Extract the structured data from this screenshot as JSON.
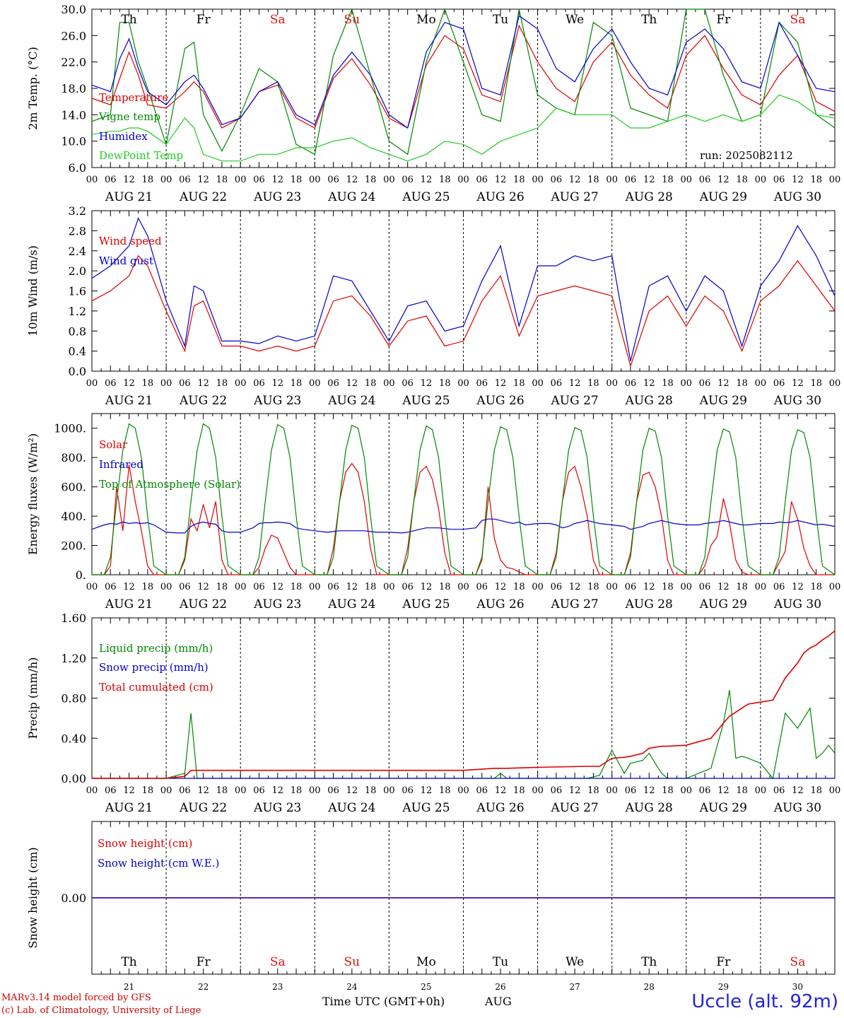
{
  "figure": {
    "footer_model": "MARv3.14 model forced by GFS",
    "footer_lab": "(c) Lab. of Climatology, University of Liege",
    "x_axis_title": "Time UTC (GMT+0h)",
    "month_label": "AUG",
    "station": "Uccle (alt. 92m)",
    "run": "run: 2025082112",
    "hour_ticks": [
      "00",
      "06",
      "12",
      "18"
    ],
    "day_dates": [
      "AUG 21",
      "AUG 22",
      "AUG 23",
      "AUG 24",
      "AUG 25",
      "AUG 26",
      "AUG 27",
      "AUG 28",
      "AUG 29",
      "AUG 30"
    ],
    "day_numbers": [
      "21",
      "22",
      "23",
      "24",
      "25",
      "26",
      "27",
      "28",
      "29",
      "30"
    ],
    "weekdays": [
      "Th",
      "Fr",
      "Sa",
      "Su",
      "Mo",
      "Tu",
      "We",
      "Th",
      "Fr",
      "Sa"
    ],
    "weekend_color": "#e01010",
    "weekday_color": "#000000"
  },
  "chart_data": [
    {
      "type": "line",
      "ylabel": "2m Temp. (°C)",
      "ylim": [
        6,
        30
      ],
      "yticks": [
        "6.0",
        "10.0",
        "14.0",
        "18.0",
        "22.0",
        "26.0",
        "30.0"
      ],
      "ytick_values": [
        6,
        10,
        14,
        18,
        22,
        26,
        30
      ],
      "x_unit": "hours since AUG 21 00 UTC",
      "x": [
        0,
        6,
        9,
        12,
        15,
        18,
        24,
        30,
        33,
        36,
        42,
        48,
        54,
        60,
        66,
        72,
        78,
        84,
        90,
        96,
        102,
        108,
        114,
        120,
        126,
        132,
        138,
        144,
        150,
        156,
        162,
        168,
        174,
        180,
        186,
        192,
        198,
        204,
        210,
        216,
        222,
        228,
        234,
        240
      ],
      "series": [
        {
          "name": "Temperature",
          "color": "#dd0000",
          "values": [
            16.5,
            15.5,
            19.5,
            23.5,
            20,
            15.5,
            15,
            17.5,
            19,
            17.5,
            12,
            13.5,
            17.5,
            18.5,
            13.5,
            12,
            19.5,
            22.5,
            18.5,
            13.5,
            12,
            21.5,
            26,
            24,
            17,
            16,
            27.5,
            22,
            18,
            16,
            22,
            25,
            20,
            17,
            15,
            23,
            26,
            21,
            17,
            15.5,
            20,
            23,
            16,
            14.5
          ]
        },
        {
          "name": "Vigne temp",
          "color": "#008800",
          "values": [
            13,
            14,
            28,
            28,
            22,
            18,
            9.5,
            24,
            25,
            14,
            8.5,
            14,
            21,
            19,
            9.5,
            8,
            23,
            30,
            20,
            10,
            8,
            22,
            30,
            22,
            14,
            13,
            30,
            17,
            15,
            14,
            28,
            26,
            15,
            14,
            13,
            30,
            30,
            20,
            13,
            14,
            28,
            25,
            14,
            12
          ]
        },
        {
          "name": "Humidex",
          "color": "#0000cc",
          "values": [
            18.5,
            17.5,
            22.5,
            25.5,
            21,
            17.5,
            15.5,
            19,
            20,
            18,
            12.5,
            13.5,
            17.5,
            19,
            14,
            12.5,
            20,
            23.5,
            20,
            14,
            12,
            23.5,
            28,
            27,
            18,
            17,
            29,
            27,
            21,
            19,
            24,
            27,
            22,
            18,
            17,
            25,
            27,
            24,
            19,
            18,
            28,
            23,
            18,
            17.5
          ]
        },
        {
          "name": "DewPoint Temp",
          "color": "#22cc22",
          "values": [
            11,
            11.5,
            11.5,
            12,
            12,
            11.5,
            9.5,
            13.5,
            12,
            8,
            7,
            7,
            8,
            8,
            9,
            9,
            10,
            10.5,
            9,
            8,
            7,
            8,
            10,
            9.5,
            8,
            10,
            11,
            12,
            15,
            14,
            14,
            14,
            12,
            12,
            13,
            14,
            13,
            14,
            13,
            14,
            17,
            16,
            14,
            13.5
          ]
        }
      ]
    },
    {
      "type": "line",
      "ylabel": "10m Wind (m/s)",
      "ylim": [
        0,
        3.2
      ],
      "yticks": [
        "0.0",
        "0.4",
        "0.8",
        "1.2",
        "1.6",
        "2.0",
        "2.4",
        "2.8",
        "3.2"
      ],
      "ytick_values": [
        0,
        0.4,
        0.8,
        1.2,
        1.6,
        2.0,
        2.4,
        2.8,
        3.2
      ],
      "x": [
        0,
        6,
        12,
        15,
        18,
        24,
        30,
        33,
        36,
        42,
        48,
        54,
        60,
        66,
        72,
        78,
        84,
        90,
        96,
        102,
        108,
        114,
        120,
        126,
        132,
        138,
        144,
        150,
        156,
        162,
        168,
        174,
        180,
        186,
        192,
        198,
        204,
        210,
        216,
        222,
        228,
        234,
        240
      ],
      "series": [
        {
          "name": "Wind speed",
          "color": "#dd0000",
          "values": [
            1.4,
            1.6,
            1.9,
            2.3,
            2.1,
            1.2,
            0.4,
            1.3,
            1.4,
            0.5,
            0.5,
            0.4,
            0.5,
            0.4,
            0.5,
            1.4,
            1.5,
            1.1,
            0.5,
            1.0,
            1.1,
            0.5,
            0.6,
            1.4,
            1.9,
            0.7,
            1.5,
            1.6,
            1.7,
            1.6,
            1.5,
            0.1,
            1.2,
            1.5,
            0.9,
            1.5,
            1.2,
            0.4,
            1.4,
            1.7,
            2.2,
            1.7,
            1.2
          ]
        },
        {
          "name": "Wind gust",
          "color": "#0000cc",
          "values": [
            1.85,
            2.1,
            2.5,
            3.05,
            2.7,
            1.4,
            0.5,
            1.7,
            1.6,
            0.6,
            0.6,
            0.55,
            0.7,
            0.6,
            0.7,
            1.9,
            1.8,
            1.2,
            0.6,
            1.3,
            1.4,
            0.8,
            0.9,
            1.8,
            2.5,
            0.9,
            2.1,
            2.1,
            2.3,
            2.2,
            2.3,
            0.2,
            1.7,
            1.9,
            1.2,
            1.9,
            1.6,
            0.5,
            1.7,
            2.2,
            2.9,
            2.3,
            1.5
          ]
        }
      ]
    },
    {
      "type": "line",
      "ylabel": "Energy fluxes (W/m²)",
      "ylim": [
        0,
        1100
      ],
      "yticks": [
        "0.",
        "200.",
        "400.",
        "600.",
        "800.",
        "1000."
      ],
      "ytick_values": [
        0,
        200,
        400,
        600,
        800,
        1000
      ],
      "x": [
        0,
        4,
        6,
        8,
        10,
        12,
        14,
        16,
        18,
        20,
        24,
        28,
        30,
        32,
        34,
        36,
        38,
        40,
        42,
        44,
        48,
        52,
        54,
        56,
        58,
        60,
        62,
        64,
        66,
        68,
        72,
        76,
        78,
        80,
        82,
        84,
        86,
        88,
        90,
        92,
        96,
        100,
        102,
        104,
        106,
        108,
        110,
        112,
        114,
        116,
        120,
        124,
        126,
        128,
        130,
        132,
        134,
        136,
        138,
        140,
        144,
        148,
        150,
        152,
        154,
        156,
        158,
        160,
        162,
        164,
        168,
        172,
        174,
        176,
        178,
        180,
        182,
        184,
        186,
        188,
        192,
        196,
        198,
        200,
        202,
        204,
        206,
        208,
        210,
        212,
        216,
        220,
        222,
        224,
        226,
        228,
        230,
        232,
        234,
        236,
        240
      ],
      "series": [
        {
          "name": "Solar",
          "color": "#dd0000",
          "values": [
            0,
            0,
            60,
            600,
            300,
            750,
            500,
            300,
            60,
            0,
            0,
            0,
            100,
            380,
            300,
            480,
            320,
            500,
            100,
            0,
            0,
            0,
            50,
            180,
            270,
            250,
            150,
            50,
            0,
            0,
            0,
            0,
            180,
            500,
            700,
            760,
            700,
            500,
            180,
            0,
            0,
            0,
            180,
            500,
            700,
            740,
            650,
            450,
            150,
            0,
            0,
            0,
            100,
            600,
            250,
            100,
            50,
            40,
            20,
            0,
            0,
            0,
            150,
            500,
            700,
            740,
            600,
            400,
            100,
            0,
            0,
            0,
            150,
            500,
            680,
            700,
            600,
            400,
            100,
            0,
            0,
            0,
            60,
            200,
            260,
            520,
            350,
            100,
            20,
            0,
            0,
            0,
            80,
            160,
            500,
            380,
            180,
            60,
            0,
            0,
            0
          ]
        },
        {
          "name": "Infrared",
          "color": "#0000cc",
          "values": [
            310,
            340,
            350,
            345,
            360,
            350,
            355,
            350,
            355,
            340,
            290,
            285,
            285,
            330,
            350,
            360,
            350,
            345,
            300,
            290,
            290,
            320,
            350,
            355,
            355,
            360,
            355,
            350,
            320,
            310,
            300,
            290,
            295,
            300,
            300,
            300,
            300,
            300,
            295,
            290,
            290,
            285,
            290,
            300,
            310,
            320,
            320,
            320,
            315,
            310,
            310,
            320,
            370,
            380,
            380,
            370,
            360,
            350,
            360,
            340,
            350,
            350,
            340,
            320,
            330,
            350,
            360,
            370,
            360,
            350,
            340,
            330,
            310,
            320,
            330,
            350,
            360,
            370,
            360,
            350,
            340,
            340,
            350,
            355,
            360,
            370,
            360,
            350,
            340,
            340,
            350,
            350,
            360,
            355,
            360,
            370,
            360,
            350,
            340,
            345,
            330
          ]
        },
        {
          "name": "Top of Atmosphere (Solar)",
          "color": "#008800",
          "values": [
            0,
            0,
            120,
            500,
            850,
            1030,
            1000,
            800,
            400,
            60,
            0,
            0,
            120,
            500,
            850,
            1030,
            1000,
            800,
            400,
            60,
            0,
            0,
            120,
            500,
            850,
            1025,
            1000,
            800,
            400,
            60,
            0,
            0,
            120,
            500,
            850,
            1020,
            1000,
            800,
            400,
            60,
            0,
            0,
            120,
            500,
            850,
            1015,
            990,
            800,
            400,
            60,
            0,
            0,
            120,
            500,
            850,
            1010,
            990,
            800,
            400,
            60,
            0,
            0,
            120,
            500,
            850,
            1005,
            985,
            800,
            400,
            60,
            0,
            0,
            120,
            500,
            850,
            1000,
            980,
            800,
            400,
            60,
            0,
            0,
            120,
            500,
            850,
            995,
            975,
            800,
            400,
            60,
            0,
            0,
            120,
            500,
            850,
            990,
            970,
            800,
            400,
            60,
            0
          ]
        }
      ]
    },
    {
      "type": "line",
      "ylabel": "Precip (mm/h)",
      "ylim": [
        0,
        1.6
      ],
      "yticks": [
        "0.00",
        "0.40",
        "0.80",
        "1.20",
        "1.60"
      ],
      "ytick_values": [
        0,
        0.4,
        0.8,
        1.2,
        1.6
      ],
      "x": [
        0,
        24,
        30,
        32,
        34,
        36,
        38,
        40,
        120,
        130,
        132,
        134,
        144,
        160,
        164,
        168,
        172,
        174,
        178,
        180,
        184,
        186,
        192,
        200,
        204,
        206,
        208,
        210,
        212,
        216,
        220,
        224,
        228,
        230,
        232,
        234,
        236,
        238,
        240
      ],
      "series": [
        {
          "name": "Liquid precip (mm/h)",
          "color": "#008800",
          "values": [
            0,
            0,
            0.05,
            0.65,
            0,
            0,
            0,
            0,
            0,
            0,
            0.05,
            0,
            0,
            0,
            0.03,
            0.28,
            0.05,
            0.15,
            0.18,
            0.25,
            0.05,
            0,
            0,
            0.1,
            0.55,
            0.88,
            0.2,
            0.22,
            0.2,
            0.15,
            0,
            0.65,
            0.5,
            0.6,
            0.7,
            0.2,
            0.25,
            0.33,
            0.25
          ]
        },
        {
          "name": "Snow precip (mm/h)",
          "color": "#0000cc",
          "values": [
            0,
            0,
            0,
            0,
            0,
            0,
            0,
            0,
            0,
            0,
            0,
            0,
            0,
            0,
            0,
            0,
            0,
            0,
            0,
            0,
            0,
            0,
            0,
            0,
            0,
            0,
            0,
            0,
            0,
            0,
            0,
            0,
            0,
            0,
            0,
            0,
            0,
            0,
            0
          ]
        },
        {
          "name": "Total cumulated (cm)",
          "color": "#dd0000",
          "values": [
            0,
            0,
            0.02,
            0.08,
            0.08,
            0.08,
            0.08,
            0.08,
            0.08,
            0.1,
            0.1,
            0.1,
            0.11,
            0.12,
            0.12,
            0.2,
            0.21,
            0.22,
            0.25,
            0.3,
            0.32,
            0.32,
            0.33,
            0.4,
            0.55,
            0.62,
            0.66,
            0.7,
            0.74,
            0.76,
            0.78,
            1.0,
            1.15,
            1.25,
            1.3,
            1.33,
            1.38,
            1.42,
            1.47
          ]
        }
      ]
    },
    {
      "type": "line",
      "ylabel": "Snow height (cm)",
      "ylim": [
        -1,
        1
      ],
      "yticks": [
        "0.00"
      ],
      "ytick_values": [
        0
      ],
      "x": [
        0,
        240
      ],
      "series": [
        {
          "name": "Snow height (cm)",
          "color": "#dd0000",
          "values": [
            0,
            0
          ]
        },
        {
          "name": "Snow height (cm W.E.)",
          "color": "#0000cc",
          "values": [
            0,
            0
          ]
        }
      ]
    }
  ]
}
